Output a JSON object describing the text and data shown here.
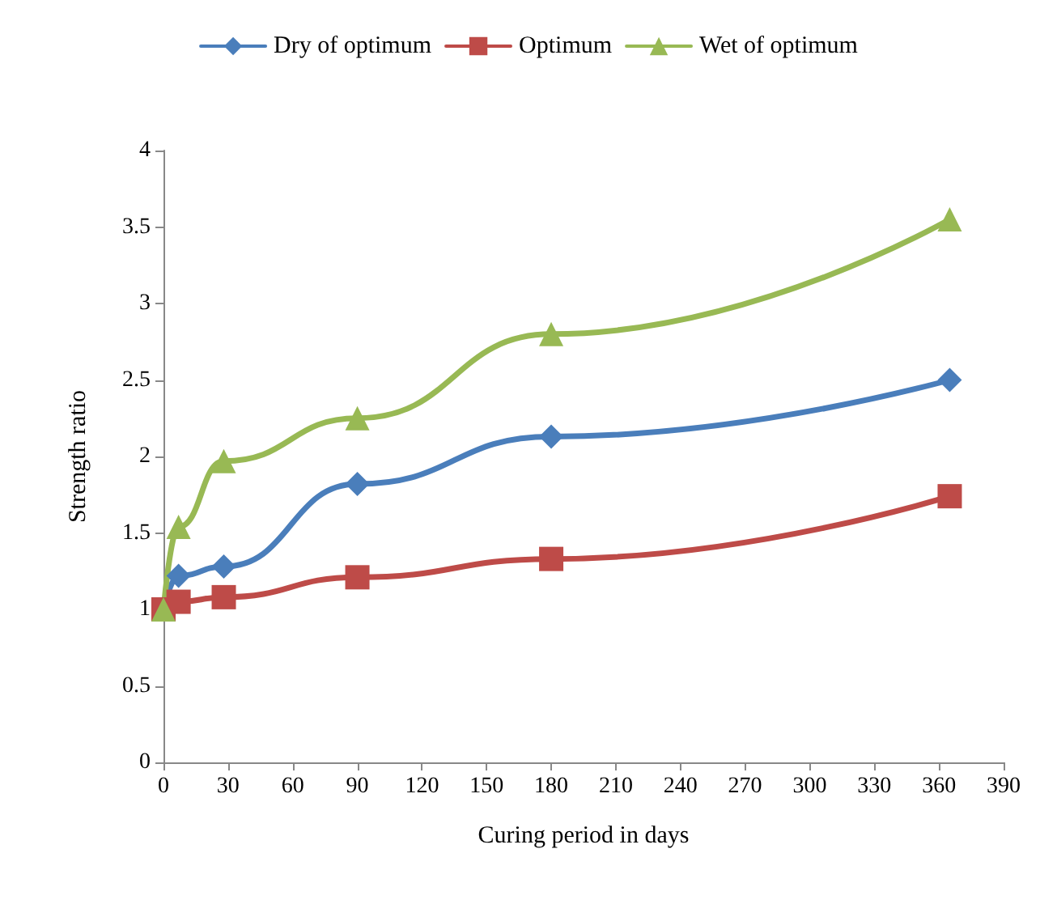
{
  "chart_data": {
    "type": "line",
    "xlabel": "Curing period in days",
    "ylabel": "Strength ratio",
    "xlim": [
      0,
      390
    ],
    "xticks": [
      0,
      30,
      60,
      90,
      120,
      150,
      180,
      210,
      240,
      270,
      300,
      330,
      360,
      390
    ],
    "ylim": [
      0,
      4
    ],
    "yticks": [
      0,
      0.5,
      1,
      1.5,
      2,
      2.5,
      3,
      3.5,
      4
    ],
    "grid": false,
    "legend": "top",
    "line_style": "solid",
    "series": [
      {
        "name": "Dry of optimum",
        "color": "#4a7ebb",
        "marker": "diamond",
        "x": [
          0,
          7,
          28,
          90,
          180,
          365
        ],
        "values": [
          1.0,
          1.22,
          1.28,
          1.82,
          2.13,
          2.5
        ]
      },
      {
        "name": "Optimum",
        "color": "#be4b48",
        "marker": "square",
        "x": [
          0,
          7,
          28,
          90,
          180,
          365
        ],
        "values": [
          1.0,
          1.05,
          1.08,
          1.21,
          1.33,
          1.74
        ]
      },
      {
        "name": "Wet of optimum",
        "color": "#98b954",
        "marker": "triangle",
        "x": [
          0,
          7,
          28,
          90,
          180,
          365
        ],
        "values": [
          1.0,
          1.54,
          1.97,
          2.25,
          2.8,
          3.55
        ]
      }
    ]
  }
}
